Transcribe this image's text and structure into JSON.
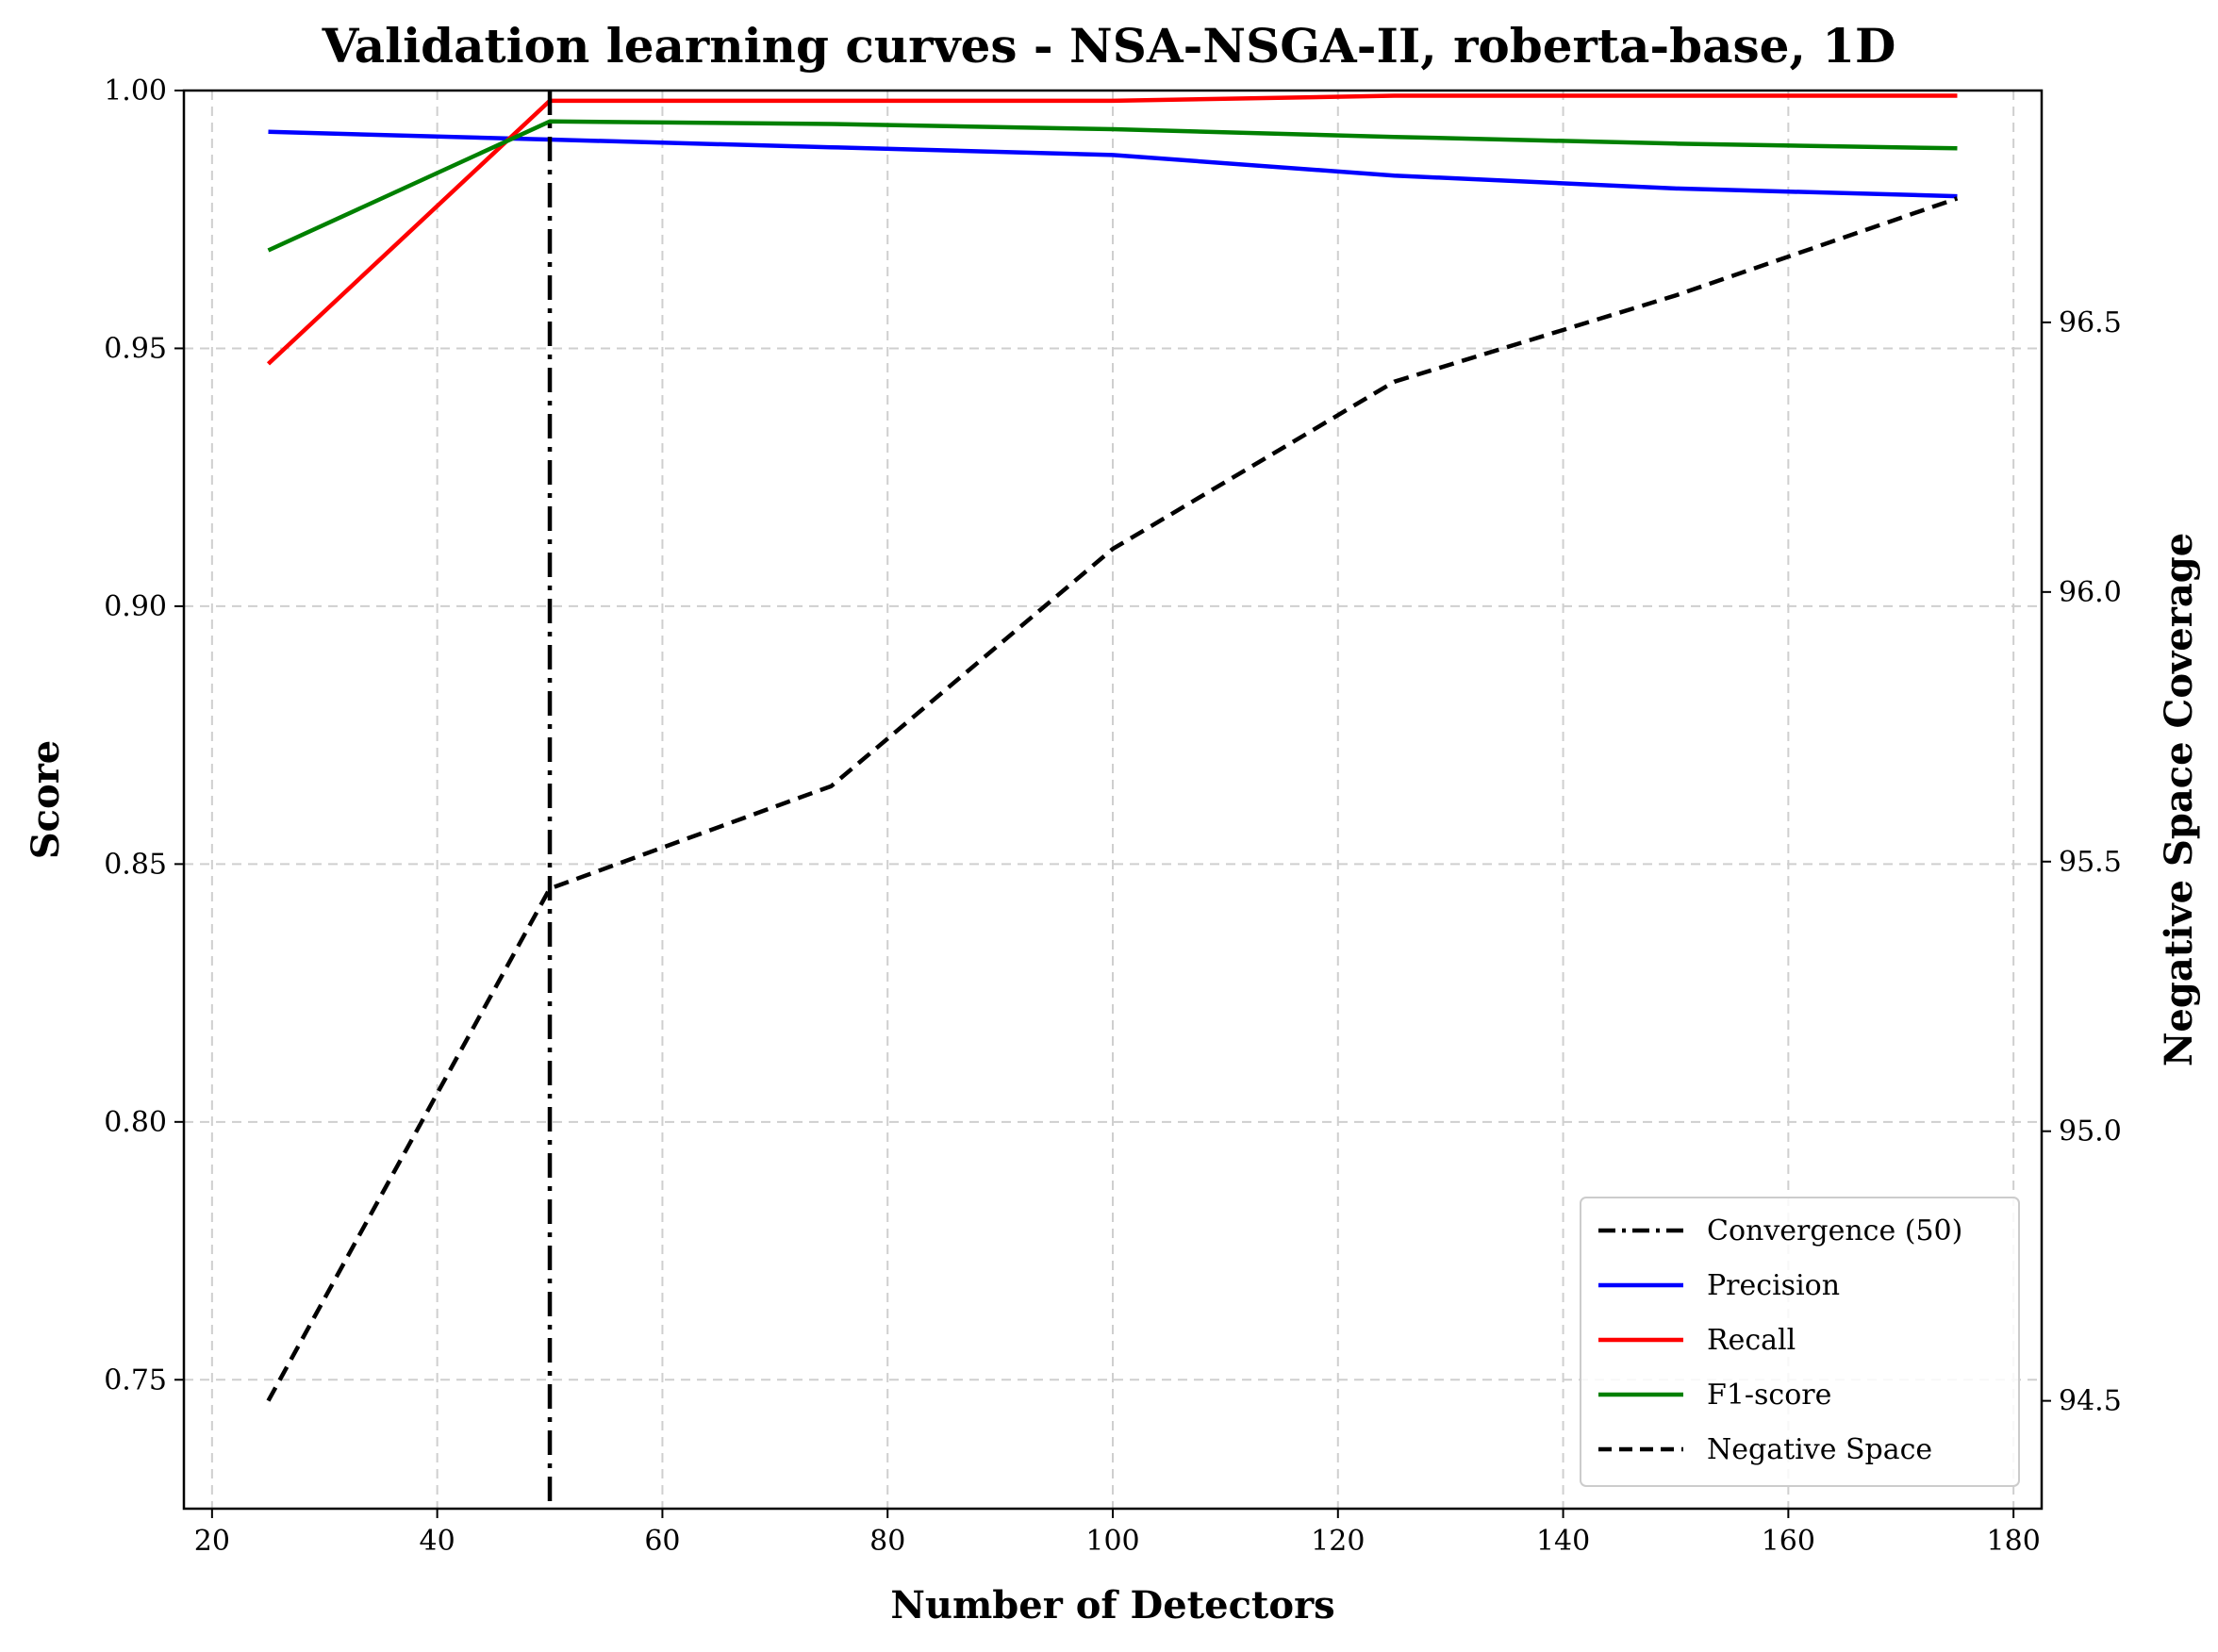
{
  "chart_data": {
    "type": "line",
    "title": "Validation learning curves - NSA-NSGA-II, roberta-base, 1D",
    "xlabel": "Number of Detectors",
    "ylabel": "Score",
    "ylabel_right": "Negative Space Coverage",
    "xlim": [
      17.5,
      182.5
    ],
    "ylim": [
      0.725,
      1.0
    ],
    "ylim_right": [
      94.3,
      96.93
    ],
    "x_ticks": [
      20,
      40,
      60,
      80,
      100,
      120,
      140,
      160,
      180
    ],
    "y_ticks": [
      0.75,
      0.8,
      0.85,
      0.9,
      0.95,
      1.0
    ],
    "y_tick_labels": [
      "0.75",
      "0.80",
      "0.85",
      "0.90",
      "0.95",
      "1.00"
    ],
    "y_right_ticks": [
      94.5,
      95.0,
      95.5,
      96.0,
      96.5
    ],
    "y_right_tick_labels": [
      "94.5",
      "95.0",
      "95.5",
      "96.0",
      "96.5"
    ],
    "grid": true,
    "legend_position": "bottom-right",
    "x": [
      25,
      50,
      75,
      100,
      125,
      150,
      175
    ],
    "convergence": {
      "name": "Convergence (50)",
      "x": 50,
      "color": "#000000"
    },
    "series": [
      {
        "name": "Precision",
        "axis": "left",
        "color": "#0000ff",
        "style": "solid",
        "values": [
          0.992,
          0.9905,
          0.989,
          0.9875,
          0.9835,
          0.981,
          0.9795
        ]
      },
      {
        "name": "Recall",
        "axis": "left",
        "color": "#ff0000",
        "style": "solid",
        "values": [
          0.947,
          0.998,
          0.998,
          0.998,
          0.999,
          0.999,
          0.999
        ]
      },
      {
        "name": "F1-score",
        "axis": "left",
        "color": "#008000",
        "style": "solid",
        "values": [
          0.969,
          0.994,
          0.9935,
          0.9925,
          0.991,
          0.9897,
          0.9888
        ]
      },
      {
        "name": "Negative Space",
        "axis": "right",
        "color": "#000000",
        "style": "dashed",
        "values": [
          94.5,
          95.45,
          95.64,
          96.08,
          96.39,
          96.55,
          96.73
        ]
      }
    ]
  }
}
